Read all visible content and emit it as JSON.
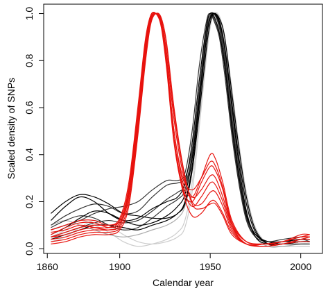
{
  "chart_data": {
    "type": "line",
    "title": "",
    "xlabel": "Calendar year",
    "ylabel": "Scaled density of SNPs",
    "xlim": [
      1858,
      2012
    ],
    "ylim": [
      -0.02,
      1.04
    ],
    "grid": false,
    "legend": "none",
    "x_ticks": [
      1860,
      1900,
      1950,
      2000
    ],
    "x_tick_labels": [
      "1860",
      "1900",
      "1950",
      "2000"
    ],
    "y_ticks": [
      0.0,
      0.2,
      0.4,
      0.6,
      0.8,
      1.0
    ],
    "y_tick_labels": [
      "0.0",
      "0.2",
      "0.4",
      "0.6",
      "0.8",
      "1.0"
    ],
    "colors": {
      "black": "#000000",
      "dark": "#333333",
      "gray": "#aaaaaa",
      "light": "#cccccc",
      "red": "#e8130e"
    },
    "series": [
      {
        "color": "black",
        "x": [
          1862,
          1870,
          1878,
          1886,
          1894,
          1902,
          1910,
          1918,
          1926,
          1932,
          1936,
          1940,
          1944,
          1948,
          1950,
          1952,
          1955,
          1958,
          1962,
          1966,
          1970,
          1975,
          1982,
          1990,
          2000,
          2005
        ],
        "y": [
          0.15,
          0.2,
          0.23,
          0.22,
          0.19,
          0.15,
          0.14,
          0.13,
          0.13,
          0.15,
          0.2,
          0.35,
          0.62,
          0.9,
          0.98,
          1.0,
          0.96,
          0.85,
          0.6,
          0.35,
          0.16,
          0.05,
          0.02,
          0.03,
          0.04,
          0.04
        ]
      },
      {
        "color": "black",
        "x": [
          1862,
          1870,
          1878,
          1886,
          1894,
          1902,
          1910,
          1918,
          1926,
          1932,
          1936,
          1940,
          1944,
          1948,
          1950,
          1952,
          1955,
          1958,
          1962,
          1966,
          1970,
          1975,
          1982,
          1990,
          2000,
          2005
        ],
        "y": [
          0.12,
          0.18,
          0.22,
          0.2,
          0.15,
          0.12,
          0.13,
          0.17,
          0.2,
          0.22,
          0.28,
          0.45,
          0.72,
          0.95,
          1.0,
          0.99,
          0.92,
          0.78,
          0.52,
          0.3,
          0.14,
          0.06,
          0.03,
          0.02,
          0.03,
          0.03
        ]
      },
      {
        "color": "dark",
        "x": [
          1862,
          1870,
          1878,
          1886,
          1894,
          1902,
          1910,
          1918,
          1926,
          1932,
          1936,
          1940,
          1944,
          1948,
          1950,
          1952,
          1955,
          1958,
          1962,
          1966,
          1970,
          1975,
          1982,
          1990,
          2000,
          2005
        ],
        "y": [
          0.1,
          0.14,
          0.17,
          0.19,
          0.18,
          0.15,
          0.16,
          0.22,
          0.27,
          0.28,
          0.3,
          0.42,
          0.68,
          0.92,
          0.99,
          1.0,
          0.95,
          0.82,
          0.56,
          0.32,
          0.15,
          0.06,
          0.03,
          0.03,
          0.04,
          0.03
        ]
      },
      {
        "color": "dark",
        "x": [
          1862,
          1870,
          1878,
          1886,
          1894,
          1902,
          1910,
          1918,
          1926,
          1932,
          1936,
          1940,
          1944,
          1948,
          1950,
          1952,
          1955,
          1958,
          1962,
          1966,
          1970,
          1975,
          1982,
          1990,
          2000,
          2005
        ],
        "y": [
          0.08,
          0.1,
          0.12,
          0.15,
          0.17,
          0.18,
          0.2,
          0.25,
          0.29,
          0.29,
          0.32,
          0.5,
          0.78,
          0.97,
          1.0,
          0.97,
          0.9,
          0.74,
          0.48,
          0.27,
          0.12,
          0.05,
          0.03,
          0.04,
          0.05,
          0.05
        ]
      },
      {
        "color": "black",
        "x": [
          1862,
          1870,
          1878,
          1886,
          1894,
          1902,
          1910,
          1918,
          1926,
          1932,
          1936,
          1940,
          1944,
          1948,
          1950,
          1952,
          1955,
          1958,
          1962,
          1966,
          1970,
          1975,
          1982,
          1990,
          2000,
          2005
        ],
        "y": [
          0.06,
          0.09,
          0.13,
          0.16,
          0.15,
          0.12,
          0.1,
          0.11,
          0.14,
          0.18,
          0.23,
          0.38,
          0.64,
          0.9,
          0.98,
          1.0,
          0.97,
          0.86,
          0.62,
          0.38,
          0.19,
          0.07,
          0.02,
          0.02,
          0.02,
          0.02
        ]
      },
      {
        "color": "dark",
        "x": [
          1862,
          1870,
          1878,
          1886,
          1894,
          1902,
          1910,
          1918,
          1926,
          1932,
          1936,
          1940,
          1944,
          1948,
          1950,
          1952,
          1955,
          1958,
          1962,
          1966,
          1970,
          1975,
          1982,
          1990,
          2000,
          2005
        ],
        "y": [
          0.05,
          0.07,
          0.09,
          0.11,
          0.12,
          0.11,
          0.12,
          0.16,
          0.21,
          0.24,
          0.27,
          0.4,
          0.66,
          0.92,
          0.99,
          1.0,
          0.94,
          0.8,
          0.54,
          0.31,
          0.15,
          0.06,
          0.03,
          0.03,
          0.03,
          0.03
        ]
      },
      {
        "color": "black",
        "x": [
          1862,
          1870,
          1878,
          1886,
          1894,
          1902,
          1910,
          1918,
          1926,
          1932,
          1936,
          1940,
          1944,
          1948,
          1950,
          1952,
          1955,
          1958,
          1962,
          1966,
          1970,
          1975,
          1982,
          1990,
          2000,
          2005
        ],
        "y": [
          0.04,
          0.06,
          0.08,
          0.1,
          0.1,
          0.09,
          0.08,
          0.1,
          0.12,
          0.15,
          0.19,
          0.33,
          0.58,
          0.86,
          0.96,
          1.0,
          0.98,
          0.9,
          0.66,
          0.42,
          0.22,
          0.08,
          0.02,
          0.02,
          0.03,
          0.03
        ]
      },
      {
        "color": "dark",
        "x": [
          1862,
          1870,
          1878,
          1886,
          1894,
          1902,
          1910,
          1918,
          1926,
          1932,
          1936,
          1940,
          1944,
          1948,
          1950,
          1952,
          1955,
          1958,
          1962,
          1966,
          1970,
          1975,
          1982,
          1990,
          2000,
          2005
        ],
        "y": [
          0.09,
          0.12,
          0.14,
          0.13,
          0.1,
          0.08,
          0.09,
          0.13,
          0.18,
          0.21,
          0.25,
          0.4,
          0.68,
          0.94,
          1.0,
          0.98,
          0.91,
          0.77,
          0.5,
          0.28,
          0.13,
          0.05,
          0.03,
          0.03,
          0.04,
          0.04
        ]
      },
      {
        "color": "gray",
        "x": [
          1862,
          1870,
          1878,
          1886,
          1894,
          1902,
          1910,
          1918,
          1926,
          1932,
          1936,
          1940,
          1944,
          1948,
          1950,
          1952,
          1955,
          1958,
          1962,
          1966,
          1970,
          1975,
          1982,
          1990,
          2000,
          2005
        ],
        "y": [
          0.1,
          0.12,
          0.1,
          0.08,
          0.06,
          0.05,
          0.06,
          0.08,
          0.1,
          0.13,
          0.18,
          0.33,
          0.6,
          0.88,
          0.97,
          1.0,
          0.96,
          0.84,
          0.58,
          0.34,
          0.16,
          0.05,
          0.01,
          0.01,
          0.02,
          0.02
        ]
      },
      {
        "color": "light",
        "x": [
          1862,
          1870,
          1878,
          1886,
          1894,
          1902,
          1910,
          1918,
          1926,
          1932,
          1936,
          1940,
          1944,
          1948,
          1950,
          1952,
          1955,
          1958,
          1962,
          1966,
          1970,
          1975,
          1982,
          1990,
          2000,
          2005
        ],
        "y": [
          0.05,
          0.08,
          0.12,
          0.1,
          0.07,
          0.03,
          0.01,
          0.02,
          0.04,
          0.07,
          0.12,
          0.28,
          0.55,
          0.84,
          0.95,
          1.0,
          0.98,
          0.88,
          0.64,
          0.4,
          0.2,
          0.07,
          0.02,
          0.01,
          0.01,
          0.01
        ]
      },
      {
        "color": "light",
        "x": [
          1862,
          1870,
          1878,
          1886,
          1894,
          1902,
          1910,
          1918,
          1926,
          1932,
          1936,
          1940,
          1944,
          1948,
          1950,
          1952,
          1955,
          1958,
          1962,
          1966,
          1970,
          1975,
          1982,
          1990,
          2000,
          2005
        ],
        "y": [
          0.03,
          0.05,
          0.09,
          0.12,
          0.1,
          0.06,
          0.03,
          0.02,
          0.03,
          0.05,
          0.09,
          0.24,
          0.52,
          0.82,
          0.94,
          1.0,
          0.99,
          0.9,
          0.68,
          0.44,
          0.24,
          0.09,
          0.02,
          0.01,
          0.01,
          0.01
        ]
      },
      {
        "color": "red",
        "x": [
          1862,
          1870,
          1878,
          1886,
          1894,
          1900,
          1905,
          1910,
          1914,
          1917,
          1920,
          1923,
          1926,
          1930,
          1935,
          1940,
          1945,
          1950,
          1953,
          1957,
          1962,
          1970,
          1980,
          1990,
          2000,
          2005
        ],
        "y": [
          0.05,
          0.07,
          0.09,
          0.1,
          0.1,
          0.12,
          0.25,
          0.55,
          0.85,
          0.98,
          1.0,
          0.96,
          0.8,
          0.5,
          0.28,
          0.22,
          0.3,
          0.4,
          0.38,
          0.28,
          0.12,
          0.03,
          0.02,
          0.03,
          0.05,
          0.05
        ]
      },
      {
        "color": "red",
        "x": [
          1862,
          1870,
          1878,
          1886,
          1894,
          1900,
          1905,
          1910,
          1914,
          1917,
          1920,
          1923,
          1926,
          1930,
          1935,
          1940,
          1945,
          1950,
          1953,
          1957,
          1962,
          1970,
          1980,
          1990,
          2000,
          2005
        ],
        "y": [
          0.08,
          0.1,
          0.12,
          0.12,
          0.1,
          0.13,
          0.28,
          0.6,
          0.88,
          0.99,
          1.0,
          0.94,
          0.76,
          0.45,
          0.25,
          0.2,
          0.28,
          0.35,
          0.33,
          0.25,
          0.1,
          0.02,
          0.02,
          0.03,
          0.06,
          0.06
        ]
      },
      {
        "color": "red",
        "x": [
          1862,
          1870,
          1878,
          1886,
          1894,
          1900,
          1905,
          1910,
          1914,
          1917,
          1920,
          1923,
          1926,
          1930,
          1935,
          1940,
          1945,
          1950,
          1953,
          1957,
          1962,
          1970,
          1980,
          1990,
          2000,
          2005
        ],
        "y": [
          0.04,
          0.05,
          0.07,
          0.08,
          0.08,
          0.1,
          0.22,
          0.52,
          0.82,
          0.97,
          1.0,
          0.97,
          0.83,
          0.55,
          0.32,
          0.22,
          0.25,
          0.31,
          0.3,
          0.22,
          0.1,
          0.03,
          0.02,
          0.02,
          0.04,
          0.05
        ]
      },
      {
        "color": "red",
        "x": [
          1862,
          1870,
          1878,
          1886,
          1894,
          1900,
          1905,
          1910,
          1914,
          1917,
          1920,
          1923,
          1926,
          1930,
          1935,
          1940,
          1945,
          1950,
          1953,
          1957,
          1962,
          1970,
          1980,
          1990,
          2000,
          2005
        ],
        "y": [
          0.06,
          0.09,
          0.11,
          0.11,
          0.09,
          0.11,
          0.24,
          0.56,
          0.86,
          0.98,
          1.0,
          0.95,
          0.78,
          0.47,
          0.26,
          0.18,
          0.22,
          0.28,
          0.27,
          0.2,
          0.09,
          0.02,
          0.02,
          0.03,
          0.05,
          0.06
        ]
      },
      {
        "color": "red",
        "x": [
          1862,
          1870,
          1878,
          1886,
          1894,
          1900,
          1905,
          1910,
          1914,
          1917,
          1920,
          1923,
          1926,
          1930,
          1935,
          1940,
          1945,
          1950,
          1953,
          1957,
          1962,
          1970,
          1980,
          1990,
          2000,
          2005
        ],
        "y": [
          0.03,
          0.04,
          0.06,
          0.07,
          0.07,
          0.09,
          0.2,
          0.5,
          0.8,
          0.96,
          1.0,
          0.98,
          0.86,
          0.58,
          0.34,
          0.2,
          0.19,
          0.24,
          0.24,
          0.18,
          0.08,
          0.02,
          0.01,
          0.02,
          0.04,
          0.04
        ]
      },
      {
        "color": "red",
        "x": [
          1862,
          1870,
          1878,
          1886,
          1894,
          1900,
          1905,
          1910,
          1914,
          1917,
          1920,
          1923,
          1926,
          1930,
          1935,
          1940,
          1945,
          1950,
          1953,
          1957,
          1962,
          1970,
          1980,
          1990,
          2000,
          2005
        ],
        "y": [
          0.07,
          0.08,
          0.1,
          0.09,
          0.08,
          0.1,
          0.23,
          0.54,
          0.84,
          0.98,
          1.0,
          0.96,
          0.8,
          0.5,
          0.3,
          0.25,
          0.3,
          0.37,
          0.35,
          0.26,
          0.11,
          0.03,
          0.02,
          0.03,
          0.05,
          0.05
        ]
      },
      {
        "color": "red",
        "x": [
          1862,
          1870,
          1878,
          1886,
          1894,
          1900,
          1905,
          1910,
          1914,
          1917,
          1920,
          1923,
          1926,
          1930,
          1935,
          1940,
          1945,
          1950,
          1953,
          1957,
          1962,
          1970,
          1980,
          1990,
          2000,
          2005
        ],
        "y": [
          0.05,
          0.06,
          0.08,
          0.09,
          0.09,
          0.12,
          0.26,
          0.58,
          0.87,
          0.99,
          1.0,
          0.95,
          0.77,
          0.46,
          0.24,
          0.14,
          0.15,
          0.2,
          0.2,
          0.15,
          0.07,
          0.02,
          0.02,
          0.03,
          0.05,
          0.05
        ]
      },
      {
        "color": "red",
        "x": [
          1862,
          1870,
          1878,
          1886,
          1894,
          1900,
          1905,
          1910,
          1914,
          1917,
          1920,
          1923,
          1926,
          1930,
          1935,
          1940,
          1945,
          1950,
          1953,
          1957,
          1962,
          1970,
          1980,
          1990,
          2000,
          2005
        ],
        "y": [
          0.02,
          0.03,
          0.05,
          0.06,
          0.06,
          0.08,
          0.18,
          0.48,
          0.78,
          0.95,
          1.0,
          0.98,
          0.87,
          0.6,
          0.35,
          0.19,
          0.17,
          0.19,
          0.19,
          0.14,
          0.06,
          0.02,
          0.01,
          0.02,
          0.03,
          0.03
        ]
      }
    ]
  }
}
